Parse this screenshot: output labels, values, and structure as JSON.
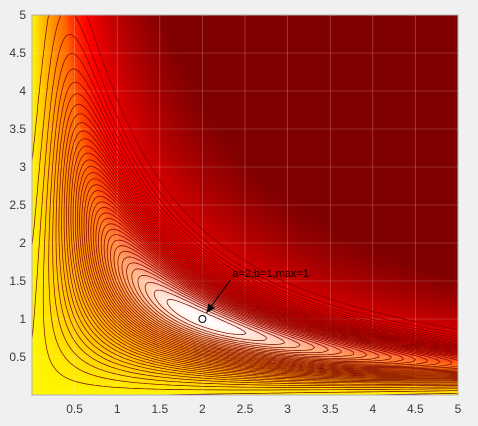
{
  "chart_data": {
    "type": "heatmap",
    "title": "",
    "xlabel": "",
    "ylabel": "",
    "xlim": [
      0,
      5
    ],
    "ylim": [
      0,
      5
    ],
    "x_ticks": [
      "0.5",
      "1",
      "1.5",
      "2",
      "2.5",
      "3",
      "3.5",
      "4",
      "4.5",
      "5"
    ],
    "y_ticks": [
      "0.5",
      "1",
      "1.5",
      "2",
      "2.5",
      "3",
      "3.5",
      "4",
      "4.5",
      "5"
    ],
    "grid": true,
    "colormap": "jet",
    "contour_color": "#7a0000",
    "surface": "exp(-((x*y - 2)^2) - 0.05*(x - y*2)^2)",
    "peak_curve": "x*y = 2",
    "marker": {
      "x": 2,
      "y": 1,
      "symbol": "o"
    },
    "annotation": {
      "text": "a=2,b=1,max=1",
      "point": [
        2,
        1
      ],
      "text_position": [
        2.35,
        1.55
      ]
    }
  },
  "colors": {
    "background": "#f0f0f0",
    "axes_border": "#b0b0b0",
    "tick_label": "#3a3a3a",
    "grid": "#d8d8d8"
  }
}
